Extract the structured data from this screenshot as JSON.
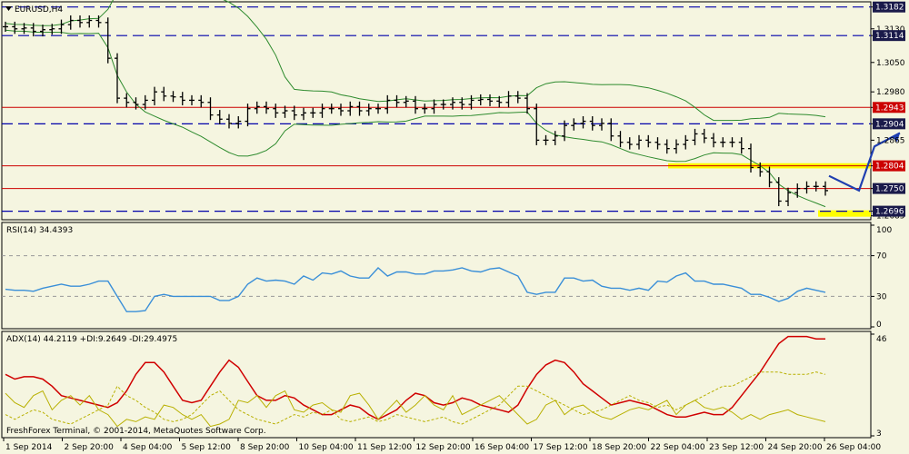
{
  "colors": {
    "background": "#f5f5e0",
    "price_bars": "#000000",
    "bollinger": "#2e8b2e",
    "resistance_lines": "#cc0000",
    "dashed_levels": "#0000aa",
    "highlight_band": "#ffff00",
    "forecast_path": "#1f3fb0",
    "rsi_line": "#3a8fd8",
    "adx_line": "#d00000",
    "di_line": "#b8b000",
    "dash_grid": "#999999"
  },
  "main_panel": {
    "symbol_label": "EURUSD,H4",
    "price_axis_ticks": [
      "1.3182",
      "1.3130",
      "1.3114",
      "1.3050",
      "1.2980",
      "1.2943",
      "1.2904",
      "1.2865",
      "1.2804",
      "1.2750",
      "1.2696",
      "1.2685"
    ],
    "highlight_labels": [
      {
        "text": "1.3182",
        "style": "dark"
      },
      {
        "text": "1.3114",
        "style": "dark"
      },
      {
        "text": "1.2943",
        "style": "red"
      },
      {
        "text": "1.2904",
        "style": "dark"
      },
      {
        "text": "1.2804",
        "style": "red"
      },
      {
        "text": "1.2750",
        "style": "dark"
      },
      {
        "text": "1.2696",
        "style": "dark"
      }
    ]
  },
  "rsi_panel": {
    "label": "RSI(14) 34.4393",
    "axis_ticks": [
      "100",
      "70",
      "30",
      "0"
    ],
    "levels": [
      70,
      30
    ]
  },
  "adx_panel": {
    "label": "ADX(14) 44.2119 +DI:9.2649 -DI:29.4975",
    "axis_ticks": [
      "46",
      "3"
    ],
    "copyright": "FreshForex Terminal, © 2001-2014, MetaQuotes Software Corp."
  },
  "time_axis": [
    "1 Sep 2014",
    "2 Sep 20:00",
    "4 Sep 04:00",
    "5 Sep 12:00",
    "8 Sep 20:00",
    "10 Sep 04:00",
    "11 Sep 12:00",
    "12 Sep 20:00",
    "16 Sep 04:00",
    "17 Sep 12:00",
    "18 Sep 20:00",
    "22 Sep 04:00",
    "23 Sep 12:00",
    "24 Sep 20:00",
    "26 Sep 04:00"
  ],
  "chart_data": [
    {
      "type": "line",
      "symbol": "EURUSD",
      "timeframe": "H4",
      "ylim": [
        1.268,
        1.319
      ],
      "levels": {
        "red_lines": [
          1.2943,
          1.2804,
          1.275
        ],
        "dashed_lines": [
          1.3182,
          1.3114,
          1.2904,
          1.2696
        ],
        "support_zone": [
          1.2685,
          1.2696
        ],
        "resistance_zone": [
          1.28,
          1.2808
        ]
      },
      "series": [
        {
          "name": "Close",
          "values": [
            1.3135,
            1.313,
            1.3132,
            1.3124,
            1.3128,
            1.313,
            1.314,
            1.315,
            1.3145,
            1.315,
            1.3145,
            1.306,
            1.2965,
            1.2955,
            1.295,
            1.296,
            1.298,
            1.297,
            1.2968,
            1.296,
            1.296,
            1.2955,
            1.2925,
            1.2915,
            1.2905,
            1.291,
            1.294,
            1.2945,
            1.294,
            1.293,
            1.2935,
            1.2925,
            1.293,
            1.293,
            1.294,
            1.294,
            1.2935,
            1.2945,
            1.2935,
            1.294,
            1.294,
            1.296,
            1.2955,
            1.2958,
            1.294,
            1.294,
            1.295,
            1.295,
            1.2955,
            1.295,
            1.296,
            1.2962,
            1.2958,
            1.2955,
            1.297,
            1.2965,
            1.294,
            1.2865,
            1.2865,
            1.2875,
            1.29,
            1.2905,
            1.291,
            1.29,
            1.2905,
            1.2875,
            1.286,
            1.2855,
            1.2865,
            1.286,
            1.2855,
            1.2845,
            1.2855,
            1.2865,
            1.288,
            1.287,
            1.286,
            1.286,
            1.286,
            1.2845,
            1.28,
            1.279,
            1.2765,
            1.272,
            1.274,
            1.275,
            1.2755,
            1.2755,
            1.2745
          ]
        }
      ],
      "forecast_path": [
        1.278,
        1.2745,
        1.285,
        1.2882
      ]
    },
    {
      "type": "line",
      "title": "RSI(14) 34.4393",
      "ylim": [
        0,
        100
      ],
      "series": [
        {
          "name": "RSI(14)",
          "values": [
            37,
            36,
            36,
            35,
            38,
            40,
            42,
            40,
            40,
            42,
            45,
            45,
            30,
            15,
            15,
            16,
            30,
            32,
            30,
            30,
            30,
            30,
            30,
            26,
            26,
            30,
            42,
            48,
            45,
            46,
            45,
            42,
            50,
            46,
            53,
            52,
            55,
            50,
            48,
            48,
            58,
            50,
            54,
            54,
            52,
            52,
            55,
            55,
            56,
            58,
            55,
            54,
            57,
            58,
            54,
            50,
            34,
            32,
            34,
            34,
            48,
            48,
            45,
            46,
            40,
            38,
            38,
            36,
            38,
            36,
            45,
            44,
            50,
            53,
            45,
            45,
            42,
            42,
            40,
            38,
            32,
            32,
            29,
            25,
            28,
            35,
            38,
            36,
            34
          ]
        }
      ]
    },
    {
      "type": "line",
      "title": "ADX(14) 44.2119 +DI:9.2649 -DI:29.4975",
      "ylim": [
        3,
        46
      ],
      "series": [
        {
          "name": "ADX(14)",
          "values": [
            29,
            27,
            28,
            28,
            27,
            24,
            20,
            19,
            18,
            17,
            16,
            15,
            17,
            22,
            29,
            34,
            34,
            30,
            24,
            18,
            17,
            18,
            24,
            30,
            35,
            32,
            26,
            20,
            18,
            18,
            20,
            19,
            16,
            14,
            12,
            12,
            14,
            16,
            15,
            12,
            10,
            12,
            14,
            18,
            21,
            20,
            17,
            16,
            17,
            19,
            18,
            16,
            15,
            14,
            13,
            16,
            23,
            29,
            33,
            35,
            34,
            30,
            25,
            22,
            19,
            16,
            17,
            18,
            17,
            16,
            14,
            12,
            11,
            11,
            12,
            13,
            12,
            12,
            15,
            20,
            25,
            30,
            36,
            42,
            45,
            45,
            45,
            44,
            44
          ]
        },
        {
          "name": "+DI",
          "values": [
            21,
            17,
            15,
            20,
            22,
            14,
            18,
            20,
            16,
            20,
            14,
            12,
            7,
            10,
            9,
            11,
            10,
            16,
            15,
            12,
            10,
            12,
            7,
            8,
            10,
            18,
            17,
            20,
            15,
            20,
            22,
            14,
            13,
            16,
            17,
            14,
            13,
            20,
            21,
            16,
            10,
            14,
            18,
            13,
            16,
            20,
            16,
            14,
            20,
            12,
            14,
            16,
            18,
            20,
            16,
            12,
            8,
            10,
            16,
            18,
            12,
            15,
            16,
            13,
            11,
            10,
            12,
            14,
            15,
            14,
            16,
            18,
            12,
            16,
            18,
            15,
            14,
            15,
            13,
            10,
            12,
            10,
            12,
            13,
            14,
            12,
            11,
            10,
            9
          ]
        },
        {
          "name": "-DI",
          "values": [
            12,
            10,
            12,
            14,
            13,
            10,
            9,
            8,
            10,
            12,
            14,
            16,
            24,
            20,
            18,
            15,
            13,
            10,
            9,
            10,
            12,
            16,
            20,
            22,
            18,
            14,
            12,
            10,
            9,
            8,
            10,
            12,
            11,
            13,
            12,
            14,
            10,
            9,
            10,
            11,
            9,
            10,
            12,
            11,
            10,
            9,
            10,
            11,
            9,
            8,
            10,
            12,
            14,
            16,
            20,
            24,
            24,
            22,
            20,
            18,
            16,
            14,
            12,
            13,
            14,
            16,
            18,
            20,
            18,
            17,
            15,
            16,
            14,
            16,
            18,
            20,
            22,
            24,
            24,
            26,
            28,
            30,
            30,
            30,
            29,
            29,
            29,
            30,
            29
          ]
        }
      ]
    }
  ]
}
